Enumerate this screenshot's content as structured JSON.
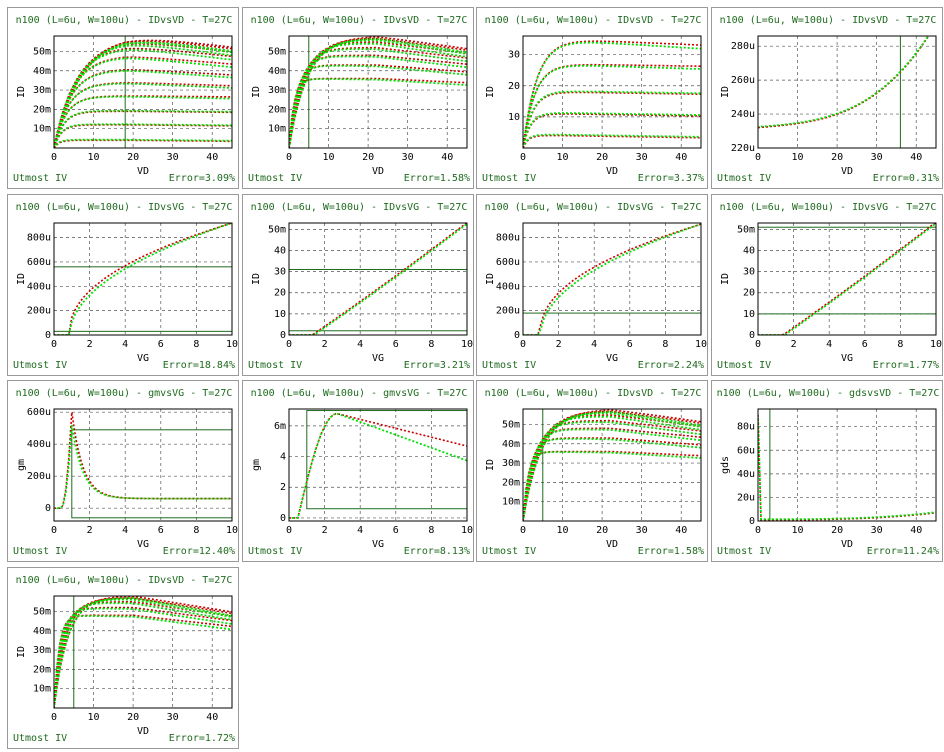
{
  "colors": {
    "measured": "#00e000",
    "simulated": "#cc0000",
    "frame": "#1f6b1f",
    "title": "#1f6b1f"
  },
  "footer_left": "Utmost IV",
  "chart_data": [
    {
      "type": "line",
      "title": "n100 (L=6u, W=100u) - IDvsVD - T=27C",
      "xlabel": "VD",
      "ylabel": "ID",
      "xlim": [
        0,
        45
      ],
      "ylim": [
        0,
        58
      ],
      "xticks": [
        0,
        10,
        20,
        30,
        40
      ],
      "xtick_labels": [
        "0",
        "10",
        "20",
        "30",
        "40"
      ],
      "yticks": [
        10,
        20,
        30,
        40,
        50
      ],
      "ytick_labels": [
        "10m",
        "20m",
        "30m",
        "40m",
        "50m"
      ],
      "frame": [
        {
          "x0": 0,
          "x1": 45,
          "y0": 0,
          "y1": 58
        },
        {
          "x0": 18,
          "x1": 45,
          "y0": 0,
          "y1": 58
        }
      ],
      "model": "idvd",
      "params": {
        "sat": [
          4,
          12,
          19,
          27,
          34,
          41,
          48,
          53,
          56,
          58,
          59
        ],
        "peak": 18,
        "decay": 0.22
      },
      "error": "Error=3.09%"
    },
    {
      "type": "line",
      "title": "n100 (L=6u, W=100u) - IDvsVD - T=27C",
      "xlabel": "VD",
      "ylabel": "ID",
      "xlim": [
        0,
        45
      ],
      "ylim": [
        0,
        58
      ],
      "xticks": [
        0,
        10,
        20,
        30,
        40
      ],
      "xtick_labels": [
        "0",
        "10",
        "20",
        "30",
        "40"
      ],
      "yticks": [
        10,
        20,
        30,
        40,
        50
      ],
      "ytick_labels": [
        "10m",
        "20m",
        "30m",
        "40m",
        "50m"
      ],
      "frame": [
        {
          "x0": 5,
          "x1": 45,
          "y0": 0,
          "y1": 58
        }
      ],
      "model": "idvd",
      "params": {
        "sat": [
          36,
          43,
          48,
          52,
          55,
          57,
          58
        ],
        "peak": 22,
        "decay": 0.26
      },
      "error": "Error=1.58%"
    },
    {
      "type": "line",
      "title": "n100 (L=6u, W=100u) - IDvsVD - T=27C",
      "xlabel": "VD",
      "ylabel": "ID",
      "xlim": [
        0,
        45
      ],
      "ylim": [
        0,
        36
      ],
      "xticks": [
        0,
        10,
        20,
        30,
        40
      ],
      "xtick_labels": [
        "0",
        "10",
        "20",
        "30",
        "40"
      ],
      "yticks": [
        10,
        20,
        30
      ],
      "ytick_labels": [
        "10",
        "20",
        "30"
      ],
      "frame": [
        {
          "x0": 0,
          "x1": 45,
          "y0": 0,
          "y1": 36
        }
      ],
      "model": "idvd",
      "params": {
        "sat": [
          4,
          11,
          18,
          27,
          35
        ],
        "peak": 9,
        "decay": 0.16
      },
      "error": "Error=3.37%"
    },
    {
      "type": "line",
      "title": "n100 (L=6u, W=100u) - IDvsVD - T=27C",
      "xlabel": "VD",
      "ylabel": "ID",
      "xlim": [
        0,
        45
      ],
      "ylim": [
        220,
        286
      ],
      "xticks": [
        0,
        10,
        20,
        30,
        40
      ],
      "xtick_labels": [
        "0",
        "10",
        "20",
        "30",
        "40"
      ],
      "yticks": [
        220,
        240,
        260,
        280
      ],
      "ytick_labels": [
        "220u",
        "240u",
        "260u",
        "280u"
      ],
      "frame": [
        {
          "x0": 0,
          "x1": 36,
          "y0": 220,
          "y1": 286
        }
      ],
      "model": "leak",
      "params": {},
      "error": "Error=0.31%"
    },
    {
      "type": "line",
      "title": "n100 (L=6u, W=100u) - IDvsVG - T=27C",
      "xlabel": "VG",
      "ylabel": "ID",
      "xlim": [
        0,
        10
      ],
      "ylim": [
        0,
        920
      ],
      "xticks": [
        0,
        2,
        4,
        6,
        8,
        10
      ],
      "xtick_labels": [
        "0",
        "2",
        "4",
        "6",
        "8",
        "10"
      ],
      "yticks": [
        0,
        200,
        400,
        600,
        800
      ],
      "ytick_labels": [
        "0",
        "200u",
        "400u",
        "600u",
        "800u"
      ],
      "frame": [
        {
          "x0": 0,
          "x1": 10,
          "y0": 30,
          "y1": 560
        }
      ],
      "model": "idvg_sqrt",
      "params": {
        "vt": 0.85,
        "scale": 920
      },
      "error": "Error=18.84%"
    },
    {
      "type": "line",
      "title": "n100 (L=6u, W=100u) - IDvsVG - T=27C",
      "xlabel": "VG",
      "ylabel": "ID",
      "xlim": [
        0,
        10
      ],
      "ylim": [
        0,
        53
      ],
      "xticks": [
        0,
        2,
        4,
        6,
        8,
        10
      ],
      "xtick_labels": [
        "0",
        "2",
        "4",
        "6",
        "8",
        "10"
      ],
      "yticks": [
        0,
        10,
        20,
        30,
        40,
        50
      ],
      "ytick_labels": [
        "0",
        "10",
        "20",
        "30",
        "40",
        "50m"
      ],
      "frame": [
        {
          "x0": 0,
          "x1": 10,
          "y0": 2,
          "y1": 31
        }
      ],
      "model": "idvg_lin",
      "params": {
        "vt": 1.3,
        "slope": 5.8
      },
      "error": "Error=3.21%"
    },
    {
      "type": "line",
      "title": "n100 (L=6u, W=100u) - IDvsVG - T=27C",
      "xlabel": "VG",
      "ylabel": "ID",
      "xlim": [
        0,
        10
      ],
      "ylim": [
        0,
        920
      ],
      "xticks": [
        0,
        2,
        4,
        6,
        8,
        10
      ],
      "xtick_labels": [
        "0",
        "2",
        "4",
        "6",
        "8",
        "10"
      ],
      "yticks": [
        0,
        200,
        400,
        600,
        800
      ],
      "ytick_labels": [
        "0",
        "200u",
        "400u",
        "600u",
        "800u"
      ],
      "frame": [
        {
          "x0": 0,
          "x1": 10,
          "y0": 180,
          "y1": 920
        }
      ],
      "model": "idvg_sqrt",
      "params": {
        "vt": 0.95,
        "scale": 910
      },
      "error": "Error=2.24%"
    },
    {
      "type": "line",
      "title": "n100 (L=6u, W=100u) - IDvsVG - T=27C",
      "xlabel": "VG",
      "ylabel": "ID",
      "xlim": [
        0,
        10
      ],
      "ylim": [
        0,
        53
      ],
      "xticks": [
        0,
        2,
        4,
        6,
        8,
        10
      ],
      "xtick_labels": [
        "0",
        "2",
        "4",
        "6",
        "8",
        "10"
      ],
      "yticks": [
        0,
        10,
        20,
        30,
        40,
        50
      ],
      "ytick_labels": [
        "0",
        "10",
        "20",
        "30",
        "40",
        "50m"
      ],
      "frame": [
        {
          "x0": 0,
          "x1": 10,
          "y0": 10,
          "y1": 51
        }
      ],
      "model": "idvg_lin",
      "params": {
        "vt": 1.4,
        "slope": 5.9
      },
      "error": "Error=1.77%"
    },
    {
      "type": "line",
      "title": "n100 (L=6u, W=100u) - gmvsVG - T=27C",
      "xlabel": "VG",
      "ylabel": "gm",
      "xlim": [
        0,
        10
      ],
      "ylim": [
        -80,
        620
      ],
      "xticks": [
        0,
        2,
        4,
        6,
        8,
        10
      ],
      "xtick_labels": [
        "0",
        "2",
        "4",
        "6",
        "8",
        "10"
      ],
      "yticks": [
        0,
        200,
        400,
        600
      ],
      "ytick_labels": [
        "0",
        "200u",
        "400u",
        "600u"
      ],
      "frame": [
        {
          "x0": 1,
          "x1": 10,
          "y0": -60,
          "y1": 490
        }
      ],
      "model": "gm_sharp",
      "params": {},
      "error": "Error=12.40%"
    },
    {
      "type": "line",
      "title": "n100 (L=6u, W=100u) - gmvsVG - T=27C",
      "xlabel": "VG",
      "ylabel": "gm",
      "xlim": [
        0,
        10
      ],
      "ylim": [
        -0.2,
        7.1
      ],
      "xticks": [
        0,
        2,
        4,
        6,
        8,
        10
      ],
      "xtick_labels": [
        "0",
        "2",
        "4",
        "6",
        "8",
        "10"
      ],
      "yticks": [
        0,
        2,
        4,
        6
      ],
      "ytick_labels": [
        "0",
        "2",
        "4",
        "6m"
      ],
      "frame": [
        {
          "x0": 1,
          "x1": 10,
          "y0": 0.6,
          "y1": 7
        }
      ],
      "model": "gm_broad",
      "params": {},
      "error": "Error=8.13%"
    },
    {
      "type": "line",
      "title": "n100 (L=6u, W=100u) - IDvsVD - T=27C",
      "xlabel": "VD",
      "ylabel": "ID",
      "xlim": [
        0,
        45
      ],
      "ylim": [
        0,
        58
      ],
      "xticks": [
        0,
        10,
        20,
        30,
        40
      ],
      "xtick_labels": [
        "0",
        "10",
        "20",
        "30",
        "40"
      ],
      "yticks": [
        10,
        20,
        30,
        40,
        50
      ],
      "ytick_labels": [
        "10m",
        "20m",
        "30m",
        "40m",
        "50m"
      ],
      "frame": [
        {
          "x0": 5,
          "x1": 45,
          "y0": 0,
          "y1": 58
        }
      ],
      "model": "idvd",
      "params": {
        "sat": [
          36,
          43,
          48,
          52,
          55,
          57,
          58
        ],
        "peak": 22,
        "decay": 0.26
      },
      "error": "Error=1.58%"
    },
    {
      "type": "line",
      "title": "n100 (L=6u, W=100u) - gdsvsVD - T=27C",
      "xlabel": "VD",
      "ylabel": "gds",
      "xlim": [
        0,
        45
      ],
      "ylim": [
        0,
        95
      ],
      "xticks": [
        0,
        10,
        20,
        30,
        40
      ],
      "xtick_labels": [
        "0",
        "10",
        "20",
        "30",
        "40"
      ],
      "yticks": [
        0,
        20,
        40,
        60,
        80
      ],
      "ytick_labels": [
        "0",
        "20u",
        "40u",
        "60u",
        "80u"
      ],
      "frame": [
        {
          "x0": 3,
          "x1": 45,
          "y0": 0,
          "y1": 95
        }
      ],
      "model": "gds",
      "params": {},
      "error": "Error=11.24%"
    },
    {
      "type": "line",
      "title": "n100 (L=6u, W=100u) - IDvsVD - T=27C",
      "xlabel": "VD",
      "ylabel": "ID",
      "xlim": [
        0,
        45
      ],
      "ylim": [
        0,
        58
      ],
      "xticks": [
        0,
        10,
        20,
        30,
        40
      ],
      "xtick_labels": [
        "0",
        "10",
        "20",
        "30",
        "40"
      ],
      "yticks": [
        10,
        20,
        30,
        40,
        50
      ],
      "ytick_labels": [
        "10m",
        "20m",
        "30m",
        "40m",
        "50m"
      ],
      "frame": [
        {
          "x0": 5,
          "x1": 45,
          "y0": 0,
          "y1": 58
        }
      ],
      "model": "idvd",
      "params": {
        "sat": [
          48,
          52,
          55,
          57,
          58
        ],
        "peak": 20,
        "decay": 0.3
      },
      "error": "Error=1.72%"
    }
  ]
}
